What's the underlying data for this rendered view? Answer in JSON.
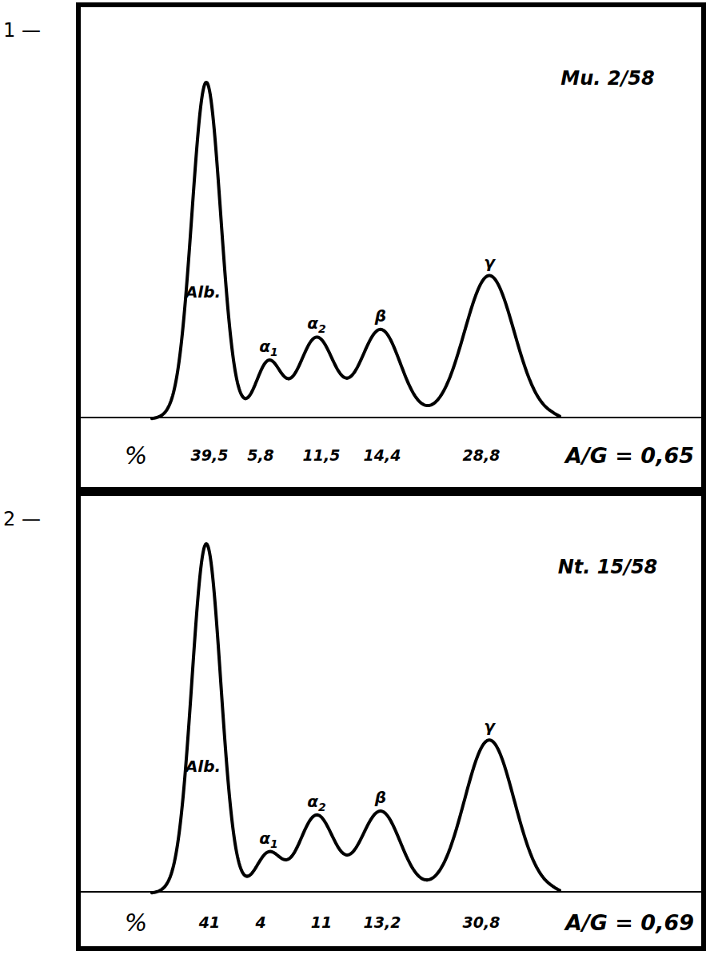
{
  "chart_data": [
    {
      "type": "line",
      "panel": "1 —",
      "title": "Mu. 2/58",
      "categories": [
        "Alb.",
        "α1",
        "α2",
        "β",
        "γ"
      ],
      "values": [
        39.5,
        5.8,
        11.5,
        14.4,
        28.8
      ],
      "value_labels": [
        "39,5",
        "5,8",
        "11,5",
        "14,4",
        "28,8"
      ],
      "data_labels": true,
      "ylabel": "%",
      "ag_ratio": {
        "value": 0.65,
        "label": "A/G = 0,65"
      },
      "color": "#000000",
      "tick_labels": false
    },
    {
      "type": "line",
      "panel": "2 —",
      "title": "Nt. 15/58",
      "categories": [
        "Alb.",
        "α1",
        "α2",
        "β",
        "γ"
      ],
      "values": [
        41,
        4,
        11,
        13.2,
        30.8
      ],
      "value_labels": [
        "41",
        "4",
        "11",
        "13,2",
        "30,8"
      ],
      "data_labels": true,
      "ylabel": "%",
      "ag_ratio": {
        "value": 0.69,
        "label": "A/G = 0,69"
      },
      "color": "#000000",
      "tick_labels": false
    }
  ]
}
